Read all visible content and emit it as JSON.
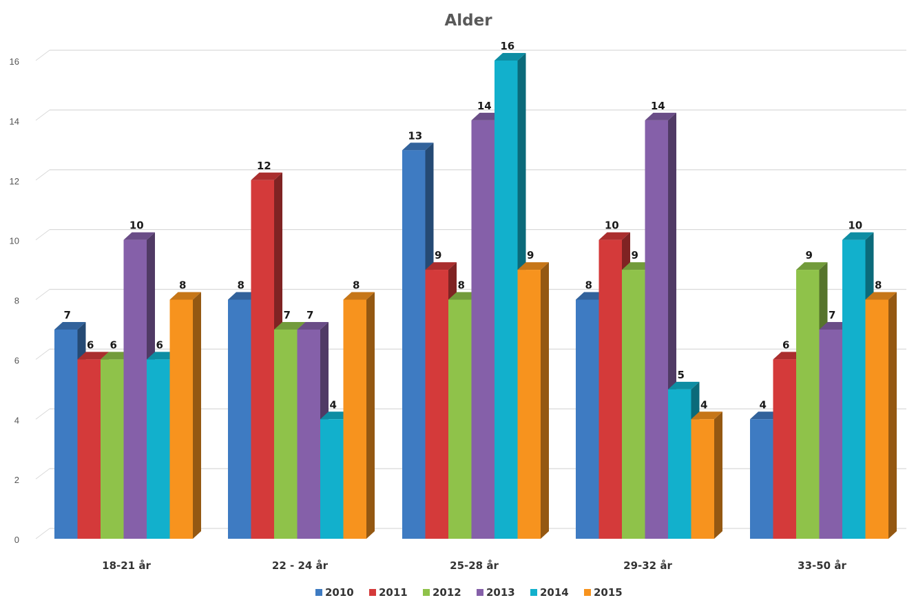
{
  "chart_data": {
    "type": "bar",
    "title": "Alder",
    "xlabel": "",
    "ylabel": "",
    "ylim": [
      0,
      16
    ],
    "yticks": [
      "0",
      "2",
      "4",
      "6",
      "8",
      "10",
      "12",
      "14",
      "16"
    ],
    "categories": [
      "18-21 år",
      "22 - 24 år",
      "25-28 år",
      "29-32 år",
      "33-50 år"
    ],
    "series": [
      {
        "name": "2010",
        "color": "#3e7bc2",
        "values": [
          7,
          8,
          13,
          8,
          4
        ]
      },
      {
        "name": "2011",
        "color": "#d43a3a",
        "values": [
          6,
          12,
          9,
          10,
          6
        ]
      },
      {
        "name": "2012",
        "color": "#8fc24a",
        "values": [
          6,
          7,
          8,
          9,
          9
        ]
      },
      {
        "name": "2013",
        "color": "#8560a9",
        "values": [
          10,
          7,
          14,
          14,
          7
        ]
      },
      {
        "name": "2014",
        "color": "#12b0cc",
        "values": [
          6,
          4,
          16,
          5,
          10
        ]
      },
      {
        "name": "2015",
        "color": "#f7931e",
        "values": [
          8,
          8,
          9,
          4,
          8
        ]
      }
    ],
    "grid": true,
    "legend": "bottom",
    "data_labels": true,
    "style": "3d-column"
  }
}
